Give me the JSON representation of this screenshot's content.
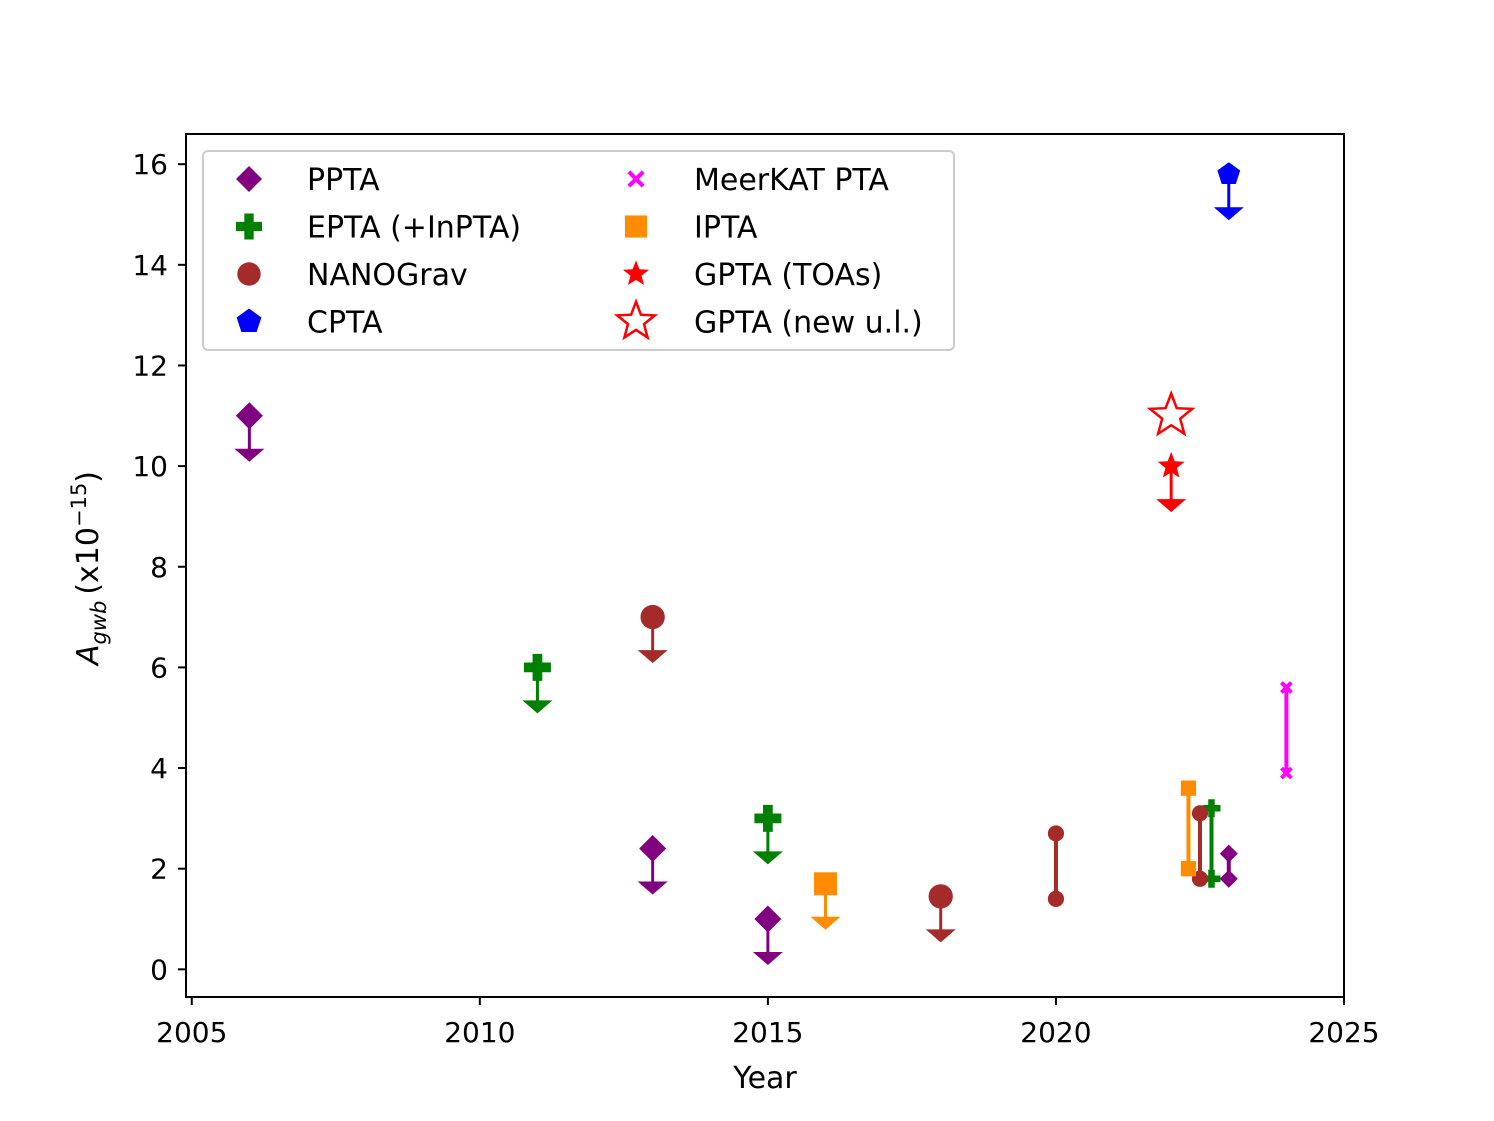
{
  "chart_data": {
    "type": "scatter",
    "title": "",
    "xlabel": "Year",
    "ylabel": "A_gwb (x10^-15)",
    "ylabel_main": "A",
    "ylabel_sub": "gwb",
    "ylabel_unit": "(x10",
    "ylabel_exp": "−15",
    "ylabel_close": ")",
    "xlim": [
      2004.9,
      2025
    ],
    "ylim": [
      -0.55,
      16.6
    ],
    "xticks": [
      2005,
      2010,
      2015,
      2020,
      2025
    ],
    "yticks": [
      0,
      2,
      4,
      6,
      8,
      10,
      12,
      14,
      16
    ],
    "legend_position": "upper-left",
    "series": [
      {
        "name": "PPTA",
        "marker": "diamond",
        "color": "#800080",
        "upper_limits": [
          {
            "x": 2006,
            "y": 11
          },
          {
            "x": 2013,
            "y": 2.4
          },
          {
            "x": 2015,
            "y": 1.0
          }
        ],
        "ranges": [
          {
            "x": 2023,
            "low": 1.8,
            "high": 2.3
          }
        ]
      },
      {
        "name": "EPTA (+InPTA)",
        "marker": "plus",
        "color": "#008000",
        "upper_limits": [
          {
            "x": 2011,
            "y": 6.0
          },
          {
            "x": 2015,
            "y": 3.0
          }
        ],
        "ranges": [
          {
            "x": 2022.7,
            "low": 1.8,
            "high": 3.2
          }
        ]
      },
      {
        "name": "NANOGrav",
        "marker": "circle",
        "color": "#a52a2a",
        "upper_limits": [
          {
            "x": 2013,
            "y": 7.0
          },
          {
            "x": 2018,
            "y": 1.45
          }
        ],
        "ranges": [
          {
            "x": 2020,
            "low": 1.4,
            "high": 2.7
          },
          {
            "x": 2022.5,
            "low": 1.8,
            "high": 3.1
          }
        ]
      },
      {
        "name": "CPTA",
        "marker": "pentagon",
        "color": "#0000ff",
        "upper_limits": [
          {
            "x": 2023,
            "y": 15.8
          }
        ],
        "ranges": []
      },
      {
        "name": "MeerKAT PTA",
        "marker": "x",
        "color": "#ff00ff",
        "upper_limits": [],
        "ranges": [
          {
            "x": 2024,
            "low": 3.9,
            "high": 5.6
          }
        ]
      },
      {
        "name": "IPTA",
        "marker": "square",
        "color": "#ff8c00",
        "upper_limits": [
          {
            "x": 2016,
            "y": 1.7
          }
        ],
        "ranges": [
          {
            "x": 2022.3,
            "low": 2.0,
            "high": 3.6
          }
        ]
      },
      {
        "name": "GPTA (TOAs)",
        "marker": "star",
        "color": "#ff0000",
        "upper_limits": [
          {
            "x": 2022,
            "y": 10.0
          }
        ],
        "ranges": []
      },
      {
        "name": "GPTA (new u.l.)",
        "marker": "star-open",
        "color": "#ff0000",
        "upper_limits": [
          {
            "x": 2022,
            "y": 11.0
          }
        ],
        "ranges": []
      }
    ]
  }
}
